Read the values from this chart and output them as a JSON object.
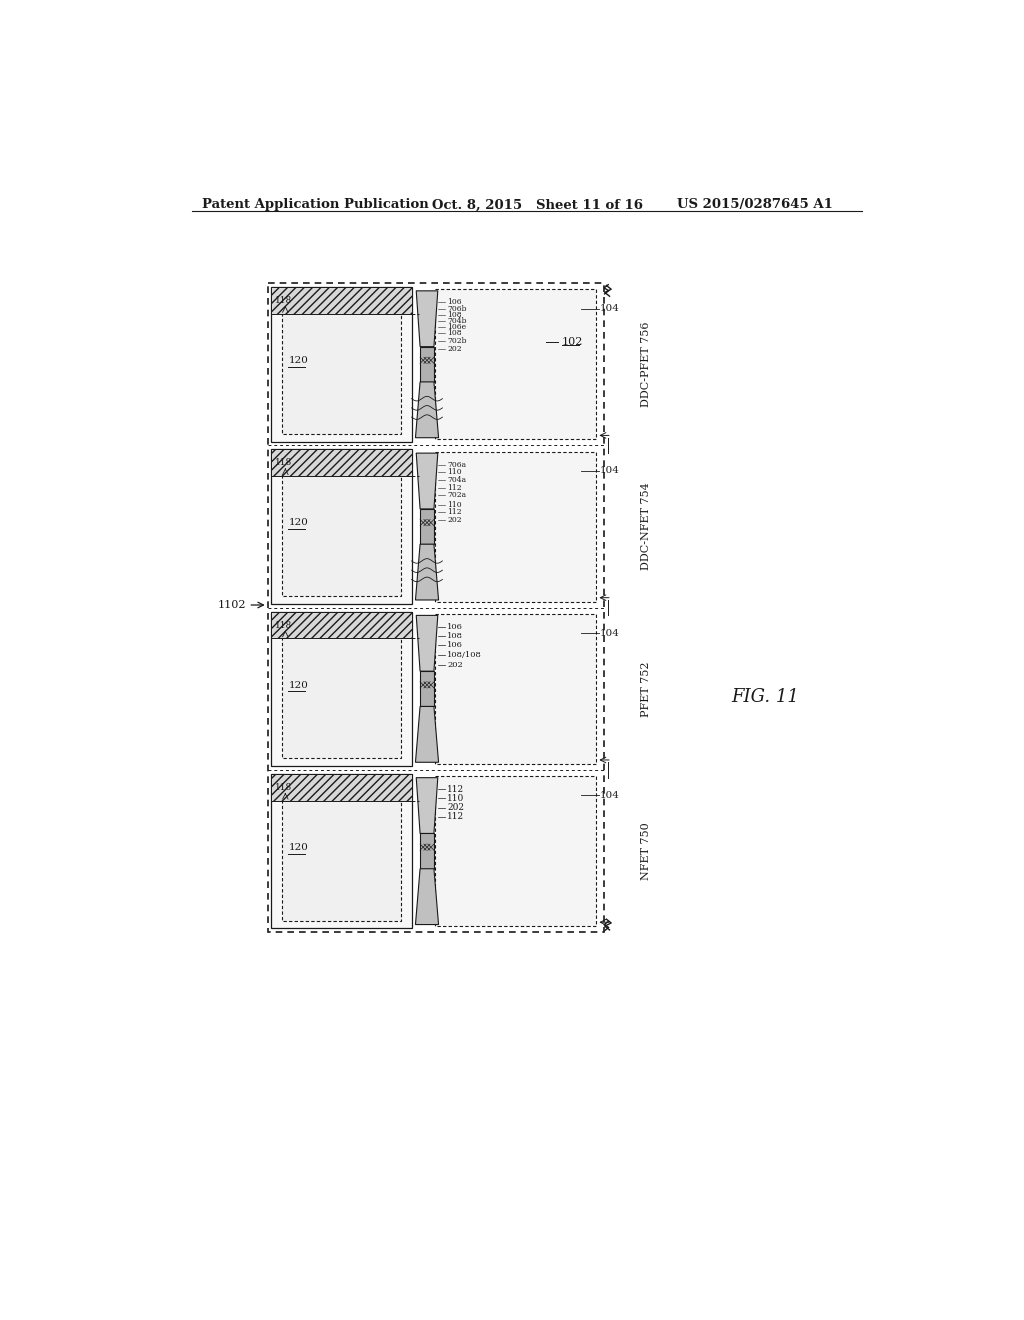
{
  "header_left": "Patent Application Publication",
  "header_center": "Oct. 8, 2015   Sheet 11 of 16",
  "header_right": "US 2015/0287645 A1",
  "fig_label": "FIG. 11",
  "bg_color": "#ffffff",
  "line_color": "#1a1a1a",
  "section_labels": [
    "NFET 750",
    "PFET 752",
    "DDC-NFET 754",
    "DDC-PFET 756"
  ],
  "outer_label": "1102",
  "substrate_label": "102",
  "well_label": "104",
  "nwell_label": "120",
  "sti_label": "118"
}
